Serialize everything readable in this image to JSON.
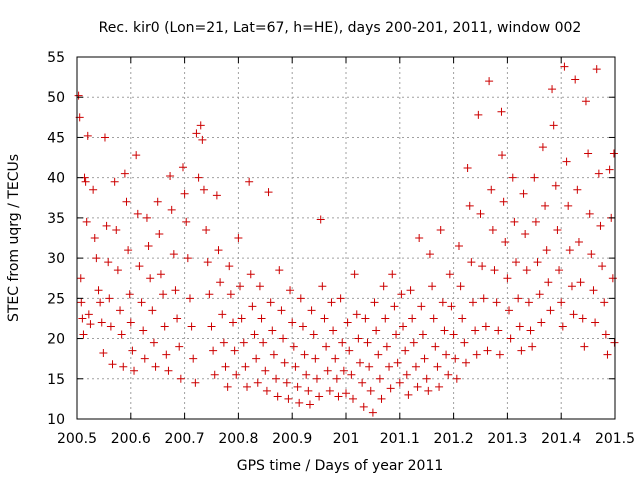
{
  "chart_data": {
    "type": "scatter",
    "title": "Rec. kir0 (Lon=21, Lat=67, h=HE), days 200-201, 2011, window 002",
    "xlabel": "GPS time / Days of year 2011",
    "ylabel": "STEC from uqrg / TECUs",
    "xlim": [
      200.5,
      201.5
    ],
    "ylim": [
      10,
      55
    ],
    "grid": true,
    "marker": "plus",
    "color": "#cc0000",
    "xticks": [
      200.5,
      200.6,
      200.7,
      200.8,
      200.9,
      201,
      201.1,
      201.2,
      201.3,
      201.4,
      201.5
    ],
    "xtick_labels": [
      "200.5",
      "200.6",
      "200.7",
      "200.8",
      "200.9",
      "201",
      "201.1",
      "201.2",
      "201.3",
      "201.4",
      "201.5"
    ],
    "yticks": [
      10,
      15,
      20,
      25,
      30,
      35,
      40,
      45,
      50,
      55
    ],
    "ytick_labels": [
      "10",
      "15",
      "20",
      "25",
      "30",
      "35",
      "40",
      "45",
      "50",
      "55"
    ],
    "points": [
      [
        200.503,
        50.2
      ],
      [
        200.505,
        47.5
      ],
      [
        200.507,
        27.5
      ],
      [
        200.508,
        24.5
      ],
      [
        200.51,
        22.5
      ],
      [
        200.512,
        20.5
      ],
      [
        200.514,
        40.0
      ],
      [
        200.516,
        39.5
      ],
      [
        200.518,
        34.5
      ],
      [
        200.52,
        45.2
      ],
      [
        200.522,
        23.0
      ],
      [
        200.525,
        21.8
      ],
      [
        200.53,
        38.5
      ],
      [
        200.533,
        32.5
      ],
      [
        200.536,
        30.0
      ],
      [
        200.54,
        26.0
      ],
      [
        200.543,
        24.5
      ],
      [
        200.546,
        22.0
      ],
      [
        200.549,
        18.2
      ],
      [
        200.552,
        45.0
      ],
      [
        200.555,
        34.0
      ],
      [
        200.558,
        29.5
      ],
      [
        200.56,
        25.0
      ],
      [
        200.563,
        21.5
      ],
      [
        200.566,
        16.8
      ],
      [
        200.57,
        39.5
      ],
      [
        200.573,
        33.5
      ],
      [
        200.576,
        28.5
      ],
      [
        200.58,
        23.5
      ],
      [
        200.583,
        20.5
      ],
      [
        200.586,
        16.5
      ],
      [
        200.589,
        40.5
      ],
      [
        200.592,
        37.0
      ],
      [
        200.595,
        31.0
      ],
      [
        200.598,
        25.5
      ],
      [
        200.6,
        22.0
      ],
      [
        200.603,
        18.5
      ],
      [
        200.606,
        16.0
      ],
      [
        200.61,
        42.8
      ],
      [
        200.613,
        35.5
      ],
      [
        200.616,
        29.0
      ],
      [
        200.62,
        24.5
      ],
      [
        200.623,
        21.0
      ],
      [
        200.626,
        17.5
      ],
      [
        200.63,
        35.0
      ],
      [
        200.633,
        31.5
      ],
      [
        200.636,
        27.5
      ],
      [
        200.64,
        23.5
      ],
      [
        200.643,
        19.5
      ],
      [
        200.646,
        16.5
      ],
      [
        200.65,
        37.0
      ],
      [
        200.653,
        33.0
      ],
      [
        200.656,
        28.0
      ],
      [
        200.66,
        25.5
      ],
      [
        200.663,
        21.5
      ],
      [
        200.666,
        18.0
      ],
      [
        200.67,
        16.0
      ],
      [
        200.673,
        40.2
      ],
      [
        200.676,
        36.0
      ],
      [
        200.68,
        30.5
      ],
      [
        200.683,
        26.0
      ],
      [
        200.686,
        22.5
      ],
      [
        200.69,
        19.0
      ],
      [
        200.693,
        15.0
      ],
      [
        200.697,
        41.3
      ],
      [
        200.7,
        38.0
      ],
      [
        200.703,
        34.5
      ],
      [
        200.706,
        30.0
      ],
      [
        200.71,
        25.0
      ],
      [
        200.713,
        21.5
      ],
      [
        200.716,
        17.5
      ],
      [
        200.72,
        14.5
      ],
      [
        200.722,
        45.5
      ],
      [
        200.726,
        40.0
      ],
      [
        200.73,
        46.5
      ],
      [
        200.733,
        44.7
      ],
      [
        200.736,
        38.5
      ],
      [
        200.74,
        33.5
      ],
      [
        200.743,
        29.5
      ],
      [
        200.746,
        25.5
      ],
      [
        200.75,
        21.5
      ],
      [
        200.753,
        18.5
      ],
      [
        200.756,
        15.5
      ],
      [
        200.76,
        37.8
      ],
      [
        200.763,
        31.0
      ],
      [
        200.766,
        27.0
      ],
      [
        200.77,
        23.0
      ],
      [
        200.773,
        19.5
      ],
      [
        200.776,
        16.5
      ],
      [
        200.78,
        14.0
      ],
      [
        200.783,
        29.0
      ],
      [
        200.786,
        25.5
      ],
      [
        200.79,
        22.0
      ],
      [
        200.793,
        18.5
      ],
      [
        200.796,
        15.5
      ],
      [
        200.8,
        32.5
      ],
      [
        200.803,
        26.5
      ],
      [
        200.806,
        22.5
      ],
      [
        200.81,
        19.5
      ],
      [
        200.813,
        16.5
      ],
      [
        200.816,
        14.0
      ],
      [
        200.82,
        39.5
      ],
      [
        200.823,
        28.0
      ],
      [
        200.826,
        24.0
      ],
      [
        200.83,
        20.5
      ],
      [
        200.833,
        17.5
      ],
      [
        200.836,
        14.5
      ],
      [
        200.84,
        26.5
      ],
      [
        200.843,
        22.5
      ],
      [
        200.846,
        19.5
      ],
      [
        200.85,
        16.0
      ],
      [
        200.853,
        13.5
      ],
      [
        200.856,
        38.2
      ],
      [
        200.86,
        24.5
      ],
      [
        200.863,
        21.0
      ],
      [
        200.866,
        18.0
      ],
      [
        200.87,
        15.0
      ],
      [
        200.873,
        12.8
      ],
      [
        200.876,
        28.5
      ],
      [
        200.88,
        23.5
      ],
      [
        200.883,
        20.0
      ],
      [
        200.886,
        17.0
      ],
      [
        200.89,
        14.5
      ],
      [
        200.893,
        12.5
      ],
      [
        200.896,
        26.0
      ],
      [
        200.9,
        22.0
      ],
      [
        200.903,
        19.0
      ],
      [
        200.906,
        16.5
      ],
      [
        200.91,
        14.0
      ],
      [
        200.913,
        12.0
      ],
      [
        200.916,
        25.0
      ],
      [
        200.92,
        21.5
      ],
      [
        200.923,
        18.0
      ],
      [
        200.926,
        15.5
      ],
      [
        200.93,
        13.5
      ],
      [
        200.933,
        11.8
      ],
      [
        200.936,
        23.5
      ],
      [
        200.94,
        20.5
      ],
      [
        200.943,
        17.5
      ],
      [
        200.946,
        15.0
      ],
      [
        200.95,
        12.8
      ],
      [
        200.953,
        34.8
      ],
      [
        200.956,
        26.5
      ],
      [
        200.96,
        22.5
      ],
      [
        200.963,
        19.0
      ],
      [
        200.966,
        16.0
      ],
      [
        200.97,
        13.5
      ],
      [
        200.973,
        24.5
      ],
      [
        200.976,
        21.0
      ],
      [
        200.98,
        17.5
      ],
      [
        200.983,
        15.0
      ],
      [
        200.986,
        12.8
      ],
      [
        200.99,
        25.0
      ],
      [
        200.993,
        19.5
      ],
      [
        200.996,
        16.0
      ],
      [
        201.0,
        13.2
      ],
      [
        201.003,
        22.0
      ],
      [
        201.006,
        18.5
      ],
      [
        201.01,
        15.5
      ],
      [
        201.013,
        12.5
      ],
      [
        201.016,
        28.0
      ],
      [
        201.02,
        23.0
      ],
      [
        201.023,
        20.0
      ],
      [
        201.026,
        17.0
      ],
      [
        201.03,
        14.5
      ],
      [
        201.033,
        11.5
      ],
      [
        201.036,
        22.5
      ],
      [
        201.04,
        19.5
      ],
      [
        201.043,
        16.5
      ],
      [
        201.046,
        13.5
      ],
      [
        201.05,
        10.8
      ],
      [
        201.053,
        24.5
      ],
      [
        201.056,
        21.0
      ],
      [
        201.06,
        18.0
      ],
      [
        201.063,
        15.0
      ],
      [
        201.066,
        12.5
      ],
      [
        201.07,
        26.5
      ],
      [
        201.073,
        22.5
      ],
      [
        201.076,
        19.0
      ],
      [
        201.08,
        16.5
      ],
      [
        201.083,
        13.8
      ],
      [
        201.086,
        28.0
      ],
      [
        201.09,
        24.0
      ],
      [
        201.093,
        20.5
      ],
      [
        201.096,
        17.0
      ],
      [
        201.1,
        14.5
      ],
      [
        201.103,
        25.5
      ],
      [
        201.106,
        21.5
      ],
      [
        201.11,
        18.5
      ],
      [
        201.113,
        15.5
      ],
      [
        201.116,
        13.0
      ],
      [
        201.12,
        26.0
      ],
      [
        201.123,
        22.5
      ],
      [
        201.126,
        19.5
      ],
      [
        201.13,
        16.5
      ],
      [
        201.133,
        14.0
      ],
      [
        201.136,
        32.5
      ],
      [
        201.14,
        24.0
      ],
      [
        201.143,
        20.5
      ],
      [
        201.146,
        17.5
      ],
      [
        201.15,
        15.0
      ],
      [
        201.153,
        13.5
      ],
      [
        201.156,
        30.5
      ],
      [
        201.16,
        26.5
      ],
      [
        201.163,
        22.5
      ],
      [
        201.166,
        19.0
      ],
      [
        201.17,
        16.5
      ],
      [
        201.173,
        14.0
      ],
      [
        201.176,
        33.5
      ],
      [
        201.18,
        24.5
      ],
      [
        201.183,
        21.0
      ],
      [
        201.186,
        18.0
      ],
      [
        201.19,
        15.5
      ],
      [
        201.193,
        28.0
      ],
      [
        201.196,
        24.0
      ],
      [
        201.2,
        20.5
      ],
      [
        201.203,
        17.5
      ],
      [
        201.206,
        15.0
      ],
      [
        201.21,
        31.5
      ],
      [
        201.213,
        26.5
      ],
      [
        201.216,
        22.5
      ],
      [
        201.22,
        19.5
      ],
      [
        201.223,
        17.0
      ],
      [
        201.226,
        41.2
      ],
      [
        201.23,
        36.5
      ],
      [
        201.233,
        29.5
      ],
      [
        201.236,
        24.5
      ],
      [
        201.24,
        21.0
      ],
      [
        201.243,
        18.0
      ],
      [
        201.246,
        47.8
      ],
      [
        201.25,
        35.5
      ],
      [
        201.253,
        29.0
      ],
      [
        201.256,
        25.0
      ],
      [
        201.26,
        21.5
      ],
      [
        201.263,
        18.5
      ],
      [
        201.266,
        52.0
      ],
      [
        201.27,
        38.5
      ],
      [
        201.273,
        33.5
      ],
      [
        201.276,
        28.5
      ],
      [
        201.28,
        24.5
      ],
      [
        201.283,
        21.0
      ],
      [
        201.286,
        18.0
      ],
      [
        201.289,
        48.2
      ],
      [
        201.29,
        42.8
      ],
      [
        201.293,
        37.0
      ],
      [
        201.296,
        32.0
      ],
      [
        201.3,
        27.5
      ],
      [
        201.303,
        23.5
      ],
      [
        201.306,
        20.0
      ],
      [
        201.31,
        40.0
      ],
      [
        201.313,
        34.5
      ],
      [
        201.316,
        29.5
      ],
      [
        201.32,
        25.0
      ],
      [
        201.323,
        21.5
      ],
      [
        201.326,
        18.5
      ],
      [
        201.33,
        38.0
      ],
      [
        201.333,
        33.0
      ],
      [
        201.336,
        28.5
      ],
      [
        201.34,
        24.5
      ],
      [
        201.343,
        21.0
      ],
      [
        201.346,
        19.0
      ],
      [
        201.35,
        40.0
      ],
      [
        201.353,
        34.5
      ],
      [
        201.356,
        29.5
      ],
      [
        201.36,
        25.5
      ],
      [
        201.363,
        22.0
      ],
      [
        201.366,
        43.8
      ],
      [
        201.37,
        36.5
      ],
      [
        201.373,
        31.0
      ],
      [
        201.376,
        27.0
      ],
      [
        201.38,
        23.5
      ],
      [
        201.383,
        51.0
      ],
      [
        201.386,
        46.5
      ],
      [
        201.39,
        39.0
      ],
      [
        201.393,
        33.5
      ],
      [
        201.396,
        28.5
      ],
      [
        201.4,
        24.5
      ],
      [
        201.403,
        21.5
      ],
      [
        201.406,
        53.8
      ],
      [
        201.41,
        42.0
      ],
      [
        201.413,
        36.5
      ],
      [
        201.416,
        31.0
      ],
      [
        201.42,
        26.5
      ],
      [
        201.423,
        23.0
      ],
      [
        201.426,
        52.2
      ],
      [
        201.43,
        38.5
      ],
      [
        201.433,
        32.0
      ],
      [
        201.436,
        27.0
      ],
      [
        201.44,
        22.5
      ],
      [
        201.443,
        19.0
      ],
      [
        201.446,
        49.5
      ],
      [
        201.45,
        43.0
      ],
      [
        201.453,
        35.5
      ],
      [
        201.456,
        30.5
      ],
      [
        201.46,
        26.0
      ],
      [
        201.463,
        22.0
      ],
      [
        201.466,
        53.5
      ],
      [
        201.47,
        40.5
      ],
      [
        201.473,
        34.0
      ],
      [
        201.476,
        29.0
      ],
      [
        201.48,
        24.5
      ],
      [
        201.483,
        20.5
      ],
      [
        201.486,
        18.0
      ],
      [
        201.49,
        41.0
      ],
      [
        201.493,
        35.0
      ],
      [
        201.496,
        27.5
      ],
      [
        201.498,
        43.0
      ],
      [
        201.499,
        19.5
      ]
    ]
  }
}
